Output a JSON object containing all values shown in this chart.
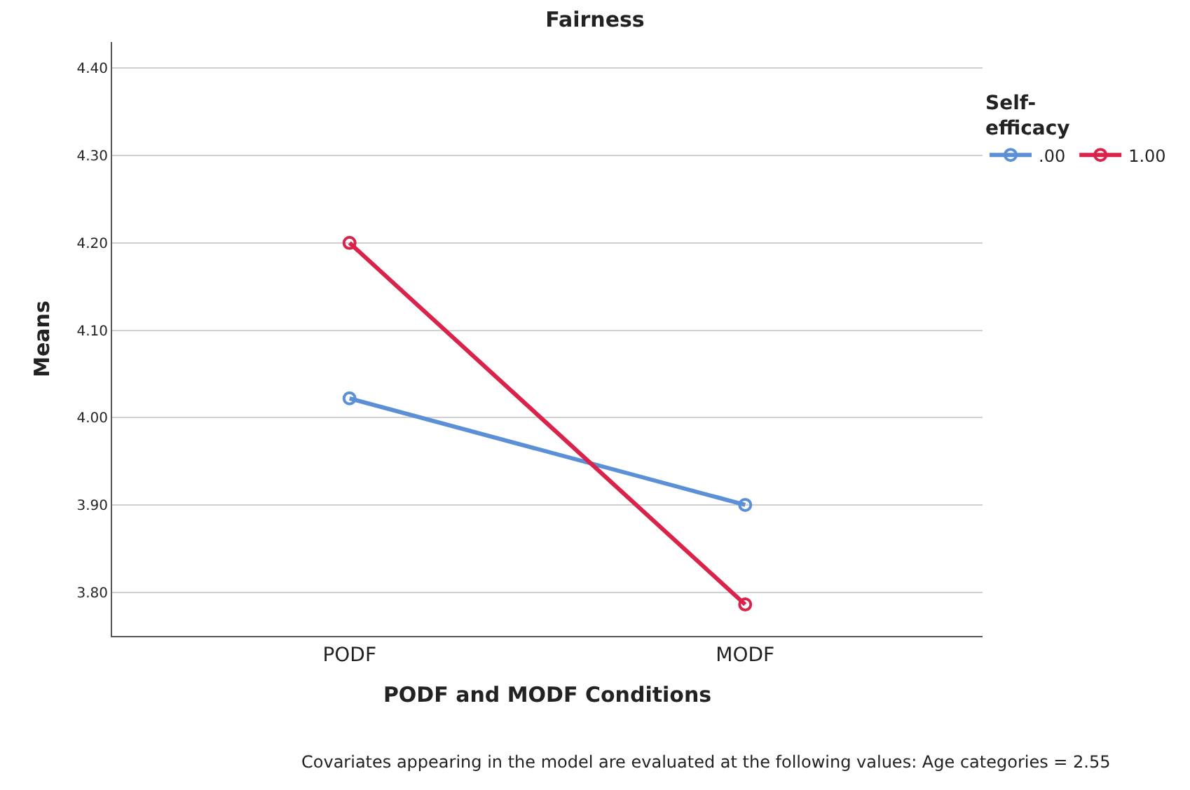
{
  "chart_data": {
    "type": "line",
    "title": "Fairness",
    "xlabel": "PODF and MODF Conditions",
    "ylabel": "Means",
    "legend_title": "Self-efficacy",
    "categories": [
      "PODF",
      "MODF"
    ],
    "series": [
      {
        "name": ".00",
        "color": "#5b8fd6",
        "values": [
          4.022,
          3.9
        ]
      },
      {
        "name": "1.00",
        "color": "#d9234a",
        "values": [
          4.2,
          3.786
        ]
      }
    ],
    "ylim": [
      3.75,
      4.43
    ],
    "yticks": [
      {
        "value": 3.8,
        "label": "3.80"
      },
      {
        "value": 3.9,
        "label": "3.90"
      },
      {
        "value": 4.0,
        "label": "4.00"
      },
      {
        "value": 4.1,
        "label": "4.10"
      },
      {
        "value": 4.2,
        "label": "4.20"
      },
      {
        "value": 4.3,
        "label": "4.30"
      },
      {
        "value": 4.4,
        "label": "4.40"
      }
    ],
    "grid": "y",
    "legend": "top right",
    "marker": "circle",
    "line_style": "solid",
    "annotations": [
      "Covariates appearing in the model are evaluated at the following values: Age categories = 2.55"
    ]
  }
}
